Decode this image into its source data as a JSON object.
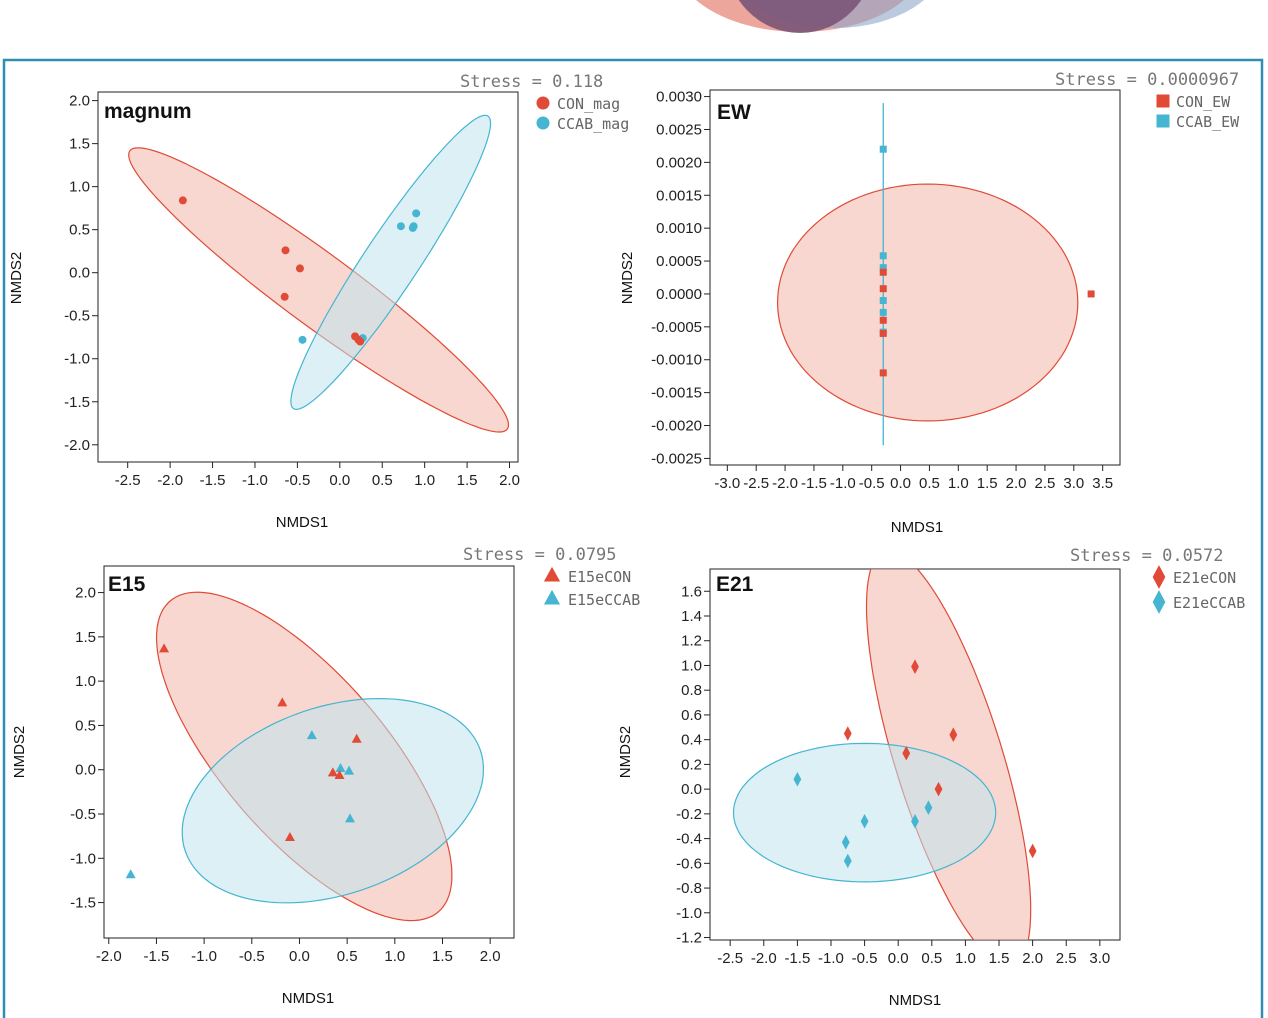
{
  "colors": {
    "con": "#e04a36",
    "ccab": "#45b5d1",
    "con_fill": "#f3b6aa",
    "ccab_fill": "#bfe4ef",
    "frame": "#2f8fb0"
  },
  "chart_data": [
    {
      "type": "scatter",
      "title": "magnum",
      "stress": "Stress = 0.118",
      "xlabel": "NMDS1",
      "ylabel": "NMDS2",
      "xlim": [
        -2.85,
        2.1
      ],
      "ylim": [
        -2.2,
        2.1
      ],
      "xticks": [
        -2.5,
        -2.0,
        -1.5,
        -1.0,
        -0.5,
        0.0,
        0.5,
        1.0,
        1.5,
        2.0
      ],
      "xtick_labels": [
        "-2.5",
        "-2.0",
        "-1.5",
        "-1.0",
        "-0.5",
        "0.0",
        "0.5",
        "1.0",
        "1.5",
        "2.0"
      ],
      "yticks": [
        2.0,
        1.5,
        1.0,
        0.5,
        0.0,
        -0.5,
        -1.0,
        -1.5,
        -2.0
      ],
      "ytick_labels": [
        "2.0",
        "1.5",
        "1.0",
        "0.5",
        "0.0",
        "-0.5",
        "-1.0",
        "-1.5",
        "-2.0"
      ],
      "legend": "top-right",
      "marker": "circle",
      "series": [
        {
          "name": "CON_mag",
          "group": "con",
          "x": [
            -1.85,
            -0.64,
            -0.47,
            -0.65,
            0.18,
            0.24,
            0.22
          ],
          "y": [
            0.84,
            0.26,
            0.05,
            -0.28,
            -0.74,
            -0.8,
            -0.78
          ],
          "ellipse": {
            "cx": -0.25,
            "cy": -0.2,
            "semi_major": 2.75,
            "semi_minor": 0.42,
            "angle_deg": -36
          }
        },
        {
          "name": "CCAB_mag",
          "group": "ccab",
          "x": [
            -0.44,
            0.27,
            0.72,
            0.87,
            0.86,
            0.9
          ],
          "y": [
            -0.78,
            -0.76,
            0.54,
            0.54,
            0.52,
            0.69
          ],
          "ellipse": {
            "cx": 0.6,
            "cy": 0.12,
            "semi_major": 2.05,
            "semi_minor": 0.32,
            "angle_deg": 56
          }
        }
      ]
    },
    {
      "type": "scatter",
      "title": "EW",
      "stress": "Stress = 0.0000967",
      "xlabel": "NMDS1",
      "ylabel": "NMDS2",
      "xlim": [
        -3.3,
        3.8
      ],
      "ylim": [
        -0.0026,
        0.0031
      ],
      "xticks": [
        -3.0,
        -2.5,
        -2.0,
        -1.5,
        -1.0,
        -0.5,
        0.0,
        0.5,
        1.0,
        1.5,
        2.0,
        2.5,
        3.0,
        3.5
      ],
      "xtick_labels": [
        "-3.0",
        "-2.5",
        "-2.0",
        "-1.5",
        "-1.0",
        "-0.5",
        "0.0",
        "0.5",
        "1.0",
        "1.5",
        "2.0",
        "2.5",
        "3.0",
        "3.5"
      ],
      "yticks": [
        0.003,
        0.0025,
        0.002,
        0.0015,
        0.001,
        0.0005,
        0.0,
        -0.0005,
        -0.001,
        -0.0015,
        -0.002,
        -0.0025
      ],
      "ytick_labels": [
        "0.0030",
        "0.0025",
        "0.0020",
        "0.0015",
        "0.0010",
        "0.0005",
        "0.0000",
        "-0.0005",
        "-0.0010",
        "-0.0015",
        "-0.0020",
        "-0.0025"
      ],
      "legend": "top-right",
      "marker": "square",
      "series": [
        {
          "name": "CON_EW",
          "group": "con",
          "x": [
            -0.3,
            -0.3,
            -0.3,
            -0.3,
            -0.3,
            3.3
          ],
          "y": [
            0.00033,
            8e-05,
            -0.0004,
            -0.0006,
            -0.0012,
            0.0
          ],
          "ellipse": {
            "cx": 0.47,
            "cy": -0.00013,
            "semi_major": 2.6,
            "semi_minor": 0.0018,
            "angle_deg": 0
          }
        },
        {
          "name": "CCAB_EW",
          "group": "ccab",
          "x": [
            -0.3,
            -0.3,
            -0.3,
            -0.3,
            -0.3,
            -0.3
          ],
          "y": [
            0.0022,
            0.00058,
            0.0004,
            -0.0001,
            -0.00028,
            -0.00058
          ],
          "line": {
            "x": -0.3,
            "y_from": 0.0029,
            "y_to": -0.0023
          }
        }
      ]
    },
    {
      "type": "scatter",
      "title": "E15",
      "stress": "Stress = 0.0795",
      "xlabel": "NMDS1",
      "ylabel": "NMDS2",
      "xlim": [
        -2.05,
        2.25
      ],
      "ylim": [
        -1.9,
        2.3
      ],
      "xticks": [
        -2.0,
        -1.5,
        -1.0,
        -0.5,
        0.0,
        0.5,
        1.0,
        1.5,
        2.0
      ],
      "xtick_labels": [
        "-2.0",
        "-1.5",
        "-1.0",
        "-0.5",
        "0.0",
        "0.5",
        "1.0",
        "1.5",
        "2.0"
      ],
      "yticks": [
        2.0,
        1.5,
        1.0,
        0.5,
        0.0,
        -0.5,
        -1.0,
        -1.5
      ],
      "ytick_labels": [
        "2.0",
        "1.5",
        "1.0",
        "0.5",
        "0.0",
        "-0.5",
        "-1.0",
        "-1.5"
      ],
      "legend": "top-right",
      "marker": "triangle",
      "series": [
        {
          "name": "E15eCON",
          "group": "con",
          "x": [
            -1.42,
            -0.18,
            0.6,
            0.35,
            0.42,
            -0.1
          ],
          "y": [
            1.37,
            0.76,
            0.35,
            -0.03,
            -0.06,
            -0.76
          ],
          "ellipse": {
            "cx": 0.05,
            "cy": 0.15,
            "semi_major": 2.25,
            "semi_minor": 0.88,
            "angle_deg": -52
          }
        },
        {
          "name": "E15eCCAB",
          "group": "ccab",
          "x": [
            0.13,
            0.43,
            0.52,
            0.53,
            -1.77
          ],
          "y": [
            0.39,
            0.02,
            -0.01,
            -0.55,
            -1.18
          ],
          "ellipse": {
            "cx": 0.35,
            "cy": -0.35,
            "semi_major": 1.65,
            "semi_minor": 1.05,
            "angle_deg": 22
          }
        }
      ]
    },
    {
      "type": "scatter",
      "title": "E21",
      "stress": "Stress = 0.0572",
      "xlabel": "NMDS1",
      "ylabel": "NMDS2",
      "xlim": [
        -2.8,
        3.3
      ],
      "ylim": [
        -1.22,
        1.78
      ],
      "xticks": [
        -2.5,
        -2.0,
        -1.5,
        -1.0,
        -0.5,
        0.0,
        0.5,
        1.0,
        1.5,
        2.0,
        2.5,
        3.0
      ],
      "xtick_labels": [
        "-2.5",
        "-2.0",
        "-1.5",
        "-1.0",
        "-0.5",
        "0.0",
        "0.5",
        "1.0",
        "1.5",
        "2.0",
        "2.5",
        "3.0"
      ],
      "yticks": [
        1.6,
        1.4,
        1.2,
        1.0,
        0.8,
        0.6,
        0.4,
        0.2,
        0.0,
        -0.2,
        -0.4,
        -0.6,
        -0.8,
        -1.0,
        -1.2
      ],
      "ytick_labels": [
        "1.6",
        "1.4",
        "1.2",
        "1.0",
        "0.8",
        "0.6",
        "0.4",
        "0.2",
        "0.0",
        "-0.2",
        "-0.4",
        "-0.6",
        "-0.8",
        "-1.0",
        "-1.2"
      ],
      "legend": "top-right",
      "marker": "diamond",
      "series": [
        {
          "name": "E21eCON",
          "group": "con",
          "x": [
            0.25,
            -0.75,
            0.82,
            0.12,
            0.6,
            2.0
          ],
          "y": [
            0.99,
            0.45,
            0.44,
            0.29,
            0.0,
            -0.5
          ],
          "ellipse": {
            "cx": 0.75,
            "cy": 0.25,
            "semi_major": 1.95,
            "semi_minor": 0.72,
            "angle_deg": -57
          }
        },
        {
          "name": "E21eCCAB",
          "group": "ccab",
          "x": [
            -1.5,
            -0.5,
            0.45,
            0.25,
            -0.78,
            -0.75
          ],
          "y": [
            0.08,
            -0.26,
            -0.15,
            -0.26,
            -0.43,
            -0.58
          ],
          "ellipse": {
            "cx": -0.5,
            "cy": -0.19,
            "semi_major": 1.95,
            "semi_minor": 0.56,
            "angle_deg": 0
          }
        }
      ]
    }
  ]
}
